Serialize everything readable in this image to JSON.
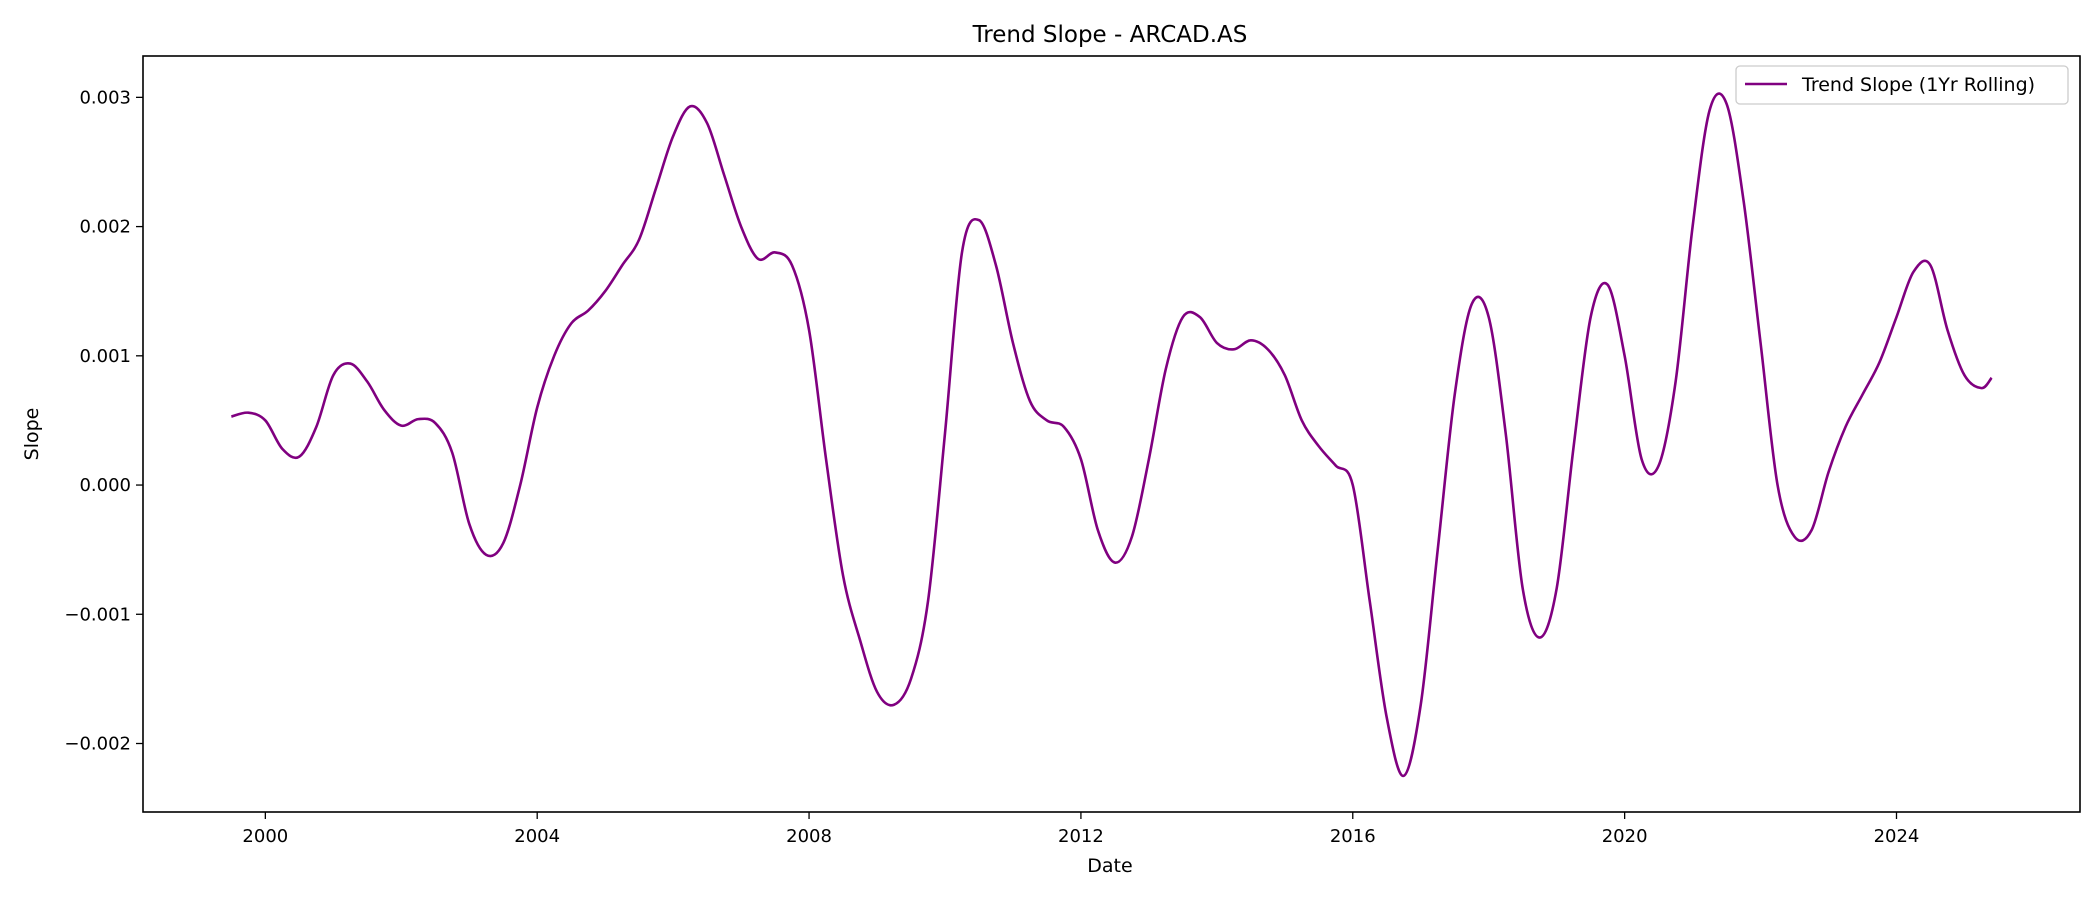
{
  "chart_data": {
    "type": "line",
    "title": "Trend Slope - ARCAD.AS",
    "xlabel": "Date",
    "ylabel": "Slope",
    "xlim": [
      1998.2,
      2026.7
    ],
    "ylim": [
      -0.00253,
      0.00332
    ],
    "x_ticks": [
      2000,
      2004,
      2008,
      2012,
      2016,
      2020,
      2024
    ],
    "x_tick_labels": [
      "2000",
      "2004",
      "2008",
      "2012",
      "2016",
      "2020",
      "2024"
    ],
    "y_ticks": [
      -0.002,
      -0.001,
      0.0,
      0.001,
      0.002,
      0.003
    ],
    "y_tick_labels": [
      "−0.002",
      "−0.001",
      "0.000",
      "0.001",
      "0.002",
      "0.003"
    ],
    "grid": false,
    "legend_position": "top-right",
    "series": [
      {
        "name": "Trend Slope (1Yr Rolling)",
        "color": "#800080",
        "points": [
          [
            1999.5,
            0.00053
          ],
          [
            1999.75,
            0.00056
          ],
          [
            2000.0,
            0.0005
          ],
          [
            2000.25,
            0.00028
          ],
          [
            2000.5,
            0.00022
          ],
          [
            2000.75,
            0.00045
          ],
          [
            2001.0,
            0.00085
          ],
          [
            2001.25,
            0.00094
          ],
          [
            2001.5,
            0.0008
          ],
          [
            2001.75,
            0.00058
          ],
          [
            2002.0,
            0.00046
          ],
          [
            2002.25,
            0.00051
          ],
          [
            2002.5,
            0.00048
          ],
          [
            2002.75,
            0.00025
          ],
          [
            2003.0,
            -0.0003
          ],
          [
            2003.25,
            -0.00054
          ],
          [
            2003.5,
            -0.00045
          ],
          [
            2003.75,
            0.0
          ],
          [
            2004.0,
            0.0006
          ],
          [
            2004.25,
            0.001
          ],
          [
            2004.5,
            0.00125
          ],
          [
            2004.75,
            0.00135
          ],
          [
            2005.0,
            0.0015
          ],
          [
            2005.25,
            0.0017
          ],
          [
            2005.5,
            0.0019
          ],
          [
            2005.75,
            0.0023
          ],
          [
            2006.0,
            0.0027
          ],
          [
            2006.25,
            0.00293
          ],
          [
            2006.5,
            0.0028
          ],
          [
            2006.75,
            0.0024
          ],
          [
            2007.0,
            0.002
          ],
          [
            2007.25,
            0.00175
          ],
          [
            2007.5,
            0.0018
          ],
          [
            2007.75,
            0.0017
          ],
          [
            2008.0,
            0.0012
          ],
          [
            2008.25,
            0.0002
          ],
          [
            2008.5,
            -0.0007
          ],
          [
            2008.75,
            -0.0012
          ],
          [
            2009.0,
            -0.0016
          ],
          [
            2009.25,
            -0.0017
          ],
          [
            2009.5,
            -0.0015
          ],
          [
            2009.75,
            -0.0009
          ],
          [
            2010.0,
            0.0004
          ],
          [
            2010.25,
            0.0018
          ],
          [
            2010.5,
            0.00205
          ],
          [
            2010.75,
            0.0017
          ],
          [
            2011.0,
            0.0011
          ],
          [
            2011.25,
            0.00065
          ],
          [
            2011.5,
            0.0005
          ],
          [
            2011.75,
            0.00045
          ],
          [
            2012.0,
            0.0002
          ],
          [
            2012.25,
            -0.00035
          ],
          [
            2012.5,
            -0.0006
          ],
          [
            2012.75,
            -0.0004
          ],
          [
            2013.0,
            0.0002
          ],
          [
            2013.25,
            0.0009
          ],
          [
            2013.5,
            0.0013
          ],
          [
            2013.75,
            0.0013
          ],
          [
            2014.0,
            0.0011
          ],
          [
            2014.25,
            0.00105
          ],
          [
            2014.5,
            0.00112
          ],
          [
            2014.75,
            0.00105
          ],
          [
            2015.0,
            0.00085
          ],
          [
            2015.25,
            0.0005
          ],
          [
            2015.5,
            0.0003
          ],
          [
            2015.75,
            0.00015
          ],
          [
            2016.0,
            0.0
          ],
          [
            2016.25,
            -0.0009
          ],
          [
            2016.5,
            -0.0018
          ],
          [
            2016.75,
            -0.00225
          ],
          [
            2017.0,
            -0.0017
          ],
          [
            2017.25,
            -0.0005
          ],
          [
            2017.5,
            0.0007
          ],
          [
            2017.75,
            0.0014
          ],
          [
            2018.0,
            0.0013
          ],
          [
            2018.25,
            0.0004
          ],
          [
            2018.5,
            -0.0008
          ],
          [
            2018.75,
            -0.00118
          ],
          [
            2019.0,
            -0.0008
          ],
          [
            2019.25,
            0.0003
          ],
          [
            2019.5,
            0.0013
          ],
          [
            2019.75,
            0.00155
          ],
          [
            2020.0,
            0.001
          ],
          [
            2020.25,
            0.0002
          ],
          [
            2020.5,
            0.00015
          ],
          [
            2020.75,
            0.0008
          ],
          [
            2021.0,
            0.002
          ],
          [
            2021.25,
            0.0029
          ],
          [
            2021.5,
            0.00295
          ],
          [
            2021.75,
            0.0022
          ],
          [
            2022.0,
            0.0011
          ],
          [
            2022.25,
            0.0
          ],
          [
            2022.5,
            -0.0004
          ],
          [
            2022.75,
            -0.00035
          ],
          [
            2023.0,
            0.0001
          ],
          [
            2023.25,
            0.00045
          ],
          [
            2023.5,
            0.0007
          ],
          [
            2023.75,
            0.00095
          ],
          [
            2024.0,
            0.0013
          ],
          [
            2024.25,
            0.00165
          ],
          [
            2024.5,
            0.0017
          ],
          [
            2024.75,
            0.0012
          ],
          [
            2025.0,
            0.00085
          ],
          [
            2025.25,
            0.00075
          ],
          [
            2025.4,
            0.00083
          ]
        ]
      }
    ]
  }
}
